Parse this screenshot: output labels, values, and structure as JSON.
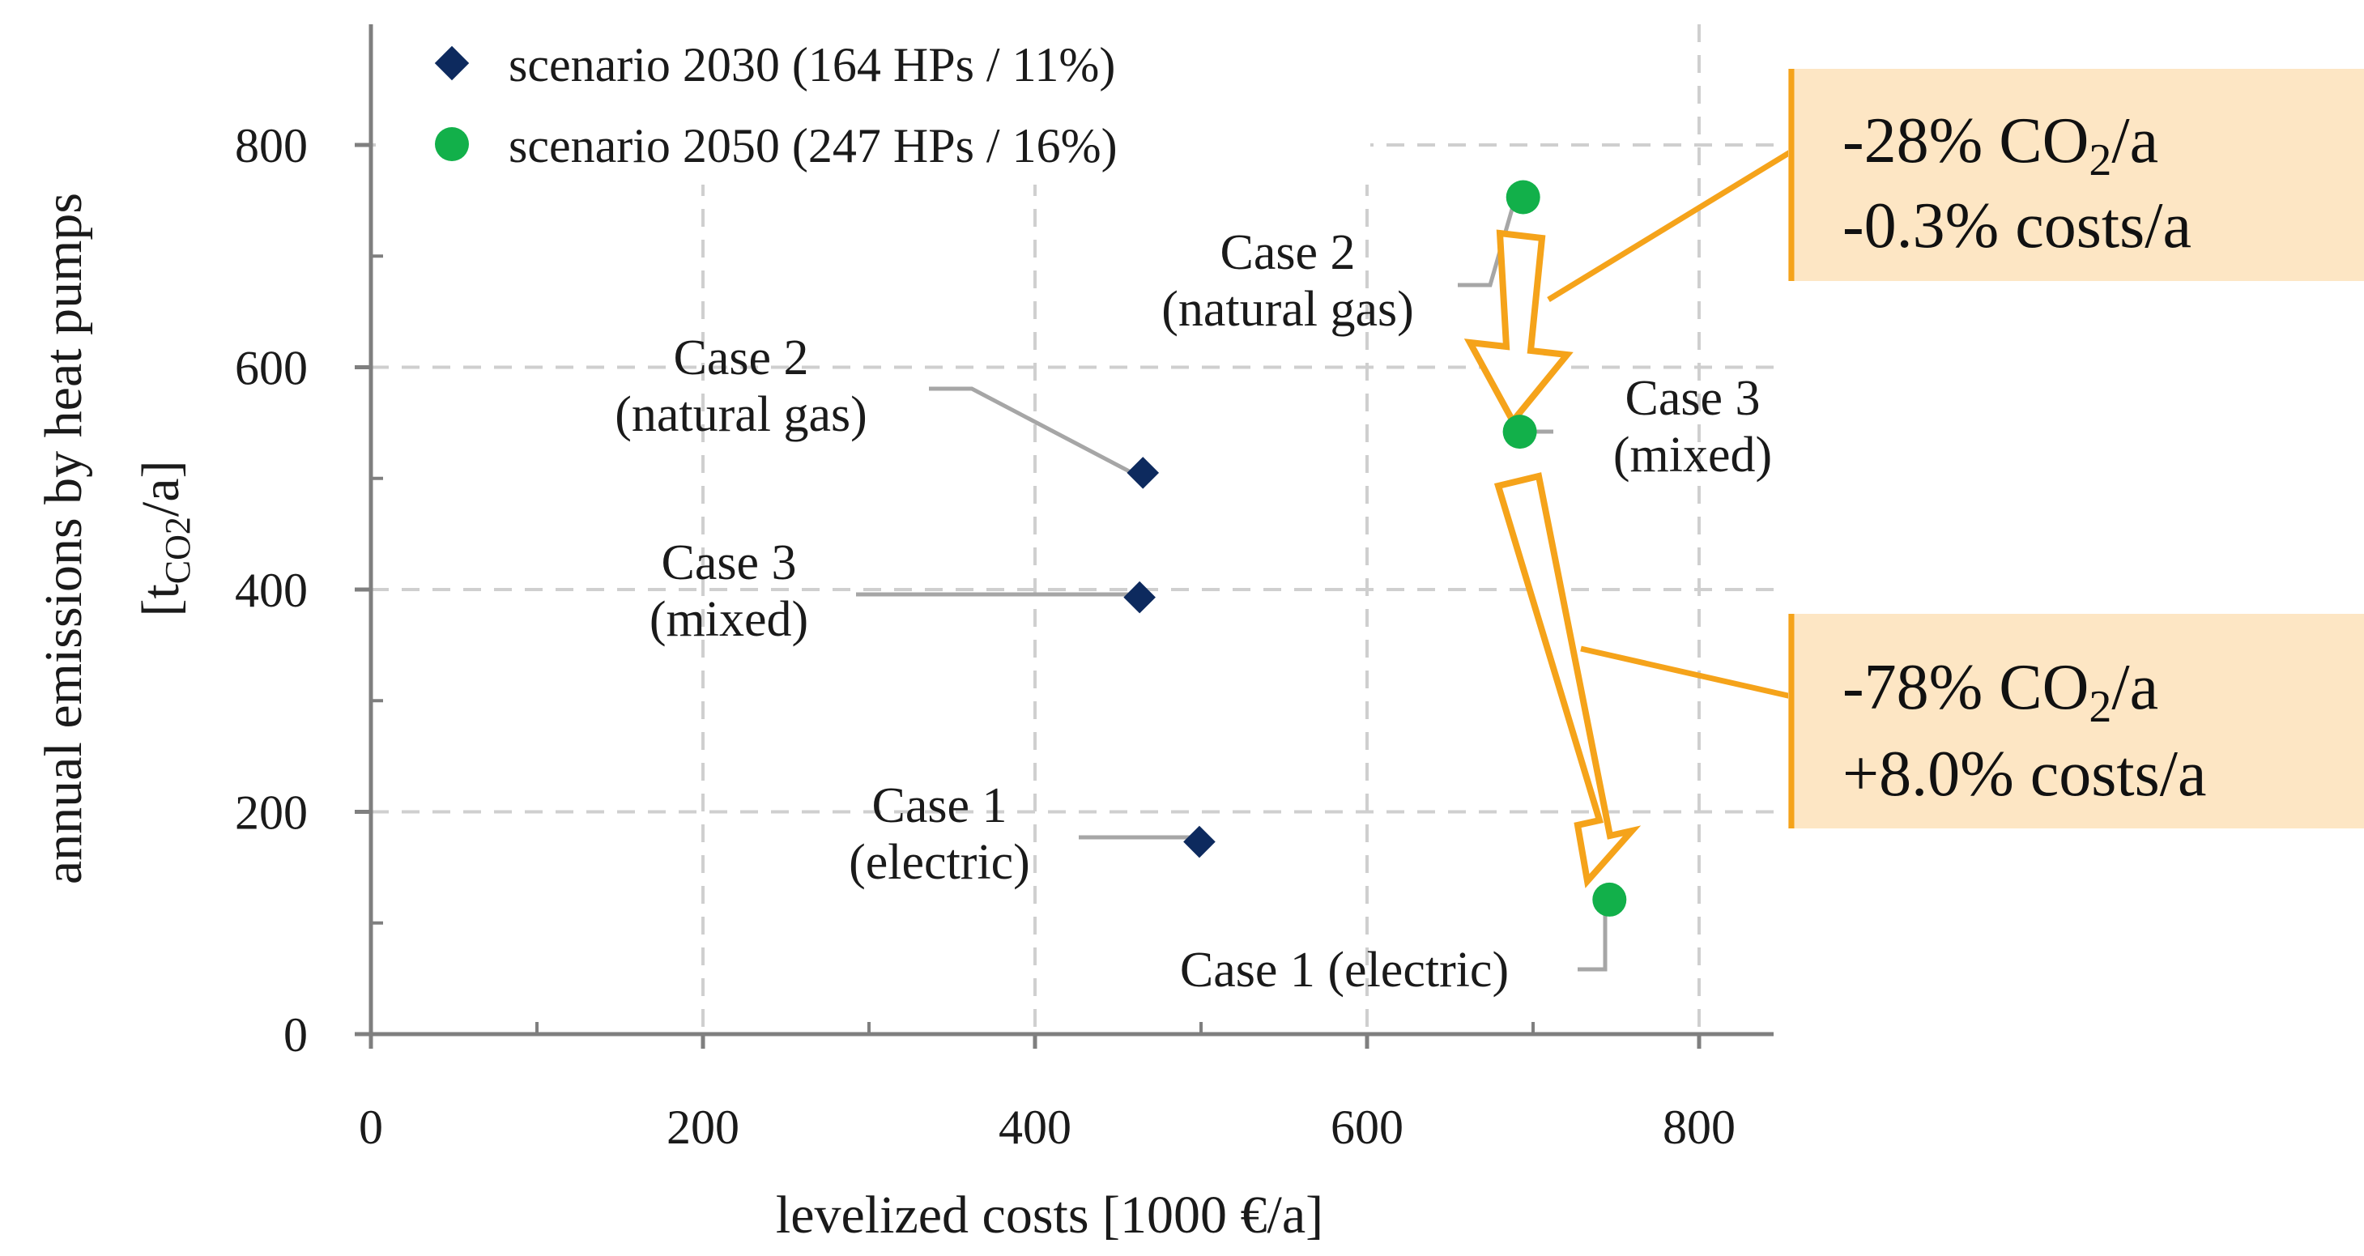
{
  "chart_data": {
    "type": "scatter",
    "xlabel": "levelized costs [1000 €/a]",
    "ylabel_main": "annual emissions by heat pumps",
    "ylabel_unit_prefix": "[t",
    "ylabel_unit_sub": "CO2",
    "ylabel_unit_suffix": "/a]",
    "xlim": [
      0,
      850
    ],
    "ylim": [
      0,
      900
    ],
    "x_ticks": [
      0,
      200,
      400,
      600,
      800
    ],
    "y_ticks": [
      0,
      200,
      400,
      600,
      800
    ],
    "grid": true,
    "legend_position": "top-left",
    "series": [
      {
        "name": "scenario 2030 (164 HPs / 11%)",
        "marker": "diamond",
        "color": "#0d2a5e",
        "points": [
          {
            "x": 465,
            "y": 505,
            "label_lines": [
              "Case 2",
              "(natural gas)"
            ]
          },
          {
            "x": 463,
            "y": 393,
            "label_lines": [
              "Case 3",
              "(mixed)"
            ]
          },
          {
            "x": 499,
            "y": 173,
            "label_lines": [
              "Case 1",
              "(electric)"
            ]
          }
        ]
      },
      {
        "name": "scenario 2050 (247 HPs / 16%)",
        "marker": "circle",
        "color": "#12b04a",
        "points": [
          {
            "x": 694,
            "y": 753,
            "label_lines": [
              "Case 2",
              "(natural gas)"
            ]
          },
          {
            "x": 692,
            "y": 542,
            "label_lines": [
              "Case 3",
              "(mixed)"
            ]
          },
          {
            "x": 746,
            "y": 121,
            "label_lines": [
              "Case 1 (electric)"
            ]
          }
        ]
      }
    ],
    "annotations": [
      {
        "line1_prefix": "-28% CO",
        "line1_sub": "2",
        "line1_suffix": "/a",
        "line2": "-0.3% costs/a"
      },
      {
        "line1_prefix": "-78% CO",
        "line1_sub": "2",
        "line1_suffix": "/a",
        "line2": "+8.0% costs/a"
      }
    ],
    "colors": {
      "arrow": "#f5a31a",
      "callout_fill": "#fde6c4",
      "callout_border": "#f5a31a",
      "grid": "#cfcfcf",
      "axis": "#7f7f7f",
      "leader": "#a6a6a6"
    }
  }
}
